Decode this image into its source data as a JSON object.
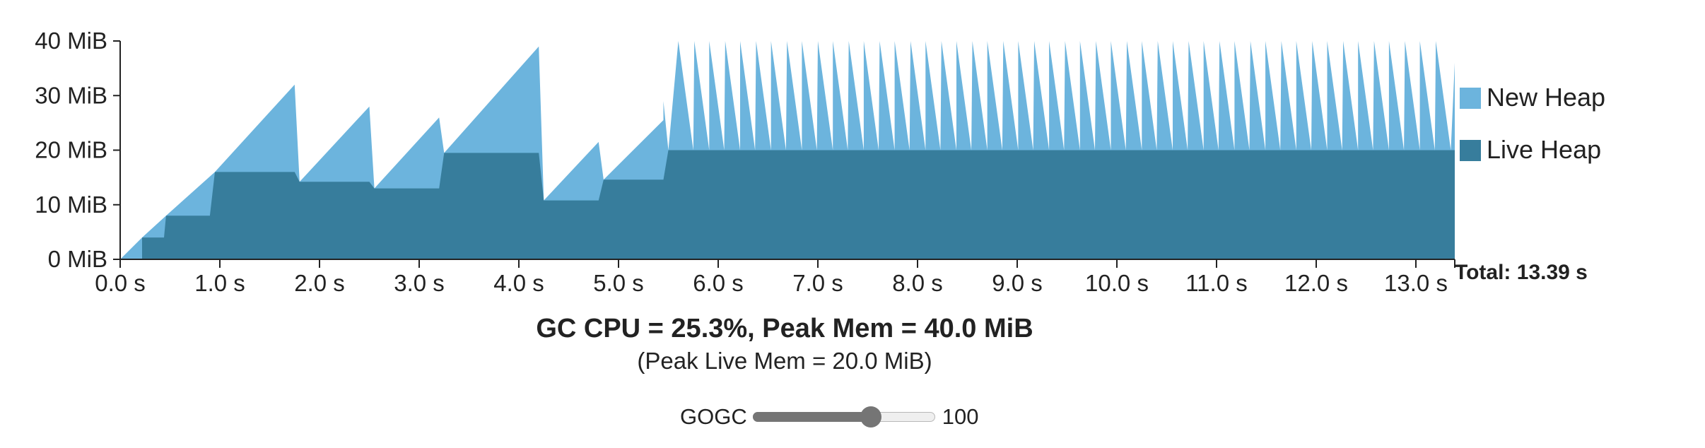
{
  "chart_data": {
    "type": "area",
    "title": "",
    "xlabel": "",
    "ylabel": "",
    "xlim": [
      0,
      13.39
    ],
    "ylim": [
      0,
      40
    ],
    "x_ticks": [
      0,
      1,
      2,
      3,
      4,
      5,
      6,
      7,
      8,
      9,
      10,
      11,
      12,
      13
    ],
    "x_tick_labels": [
      "0.0 s",
      "1.0 s",
      "2.0 s",
      "3.0 s",
      "4.0 s",
      "5.0 s",
      "6.0 s",
      "7.0 s",
      "8.0 s",
      "9.0 s",
      "10.0 s",
      "11.0 s",
      "12.0 s",
      "13.0 s"
    ],
    "y_ticks": [
      0,
      10,
      20,
      30,
      40
    ],
    "y_tick_labels": [
      "0 MiB",
      "10 MiB",
      "20 MiB",
      "30 MiB",
      "40 MiB"
    ],
    "grid": false,
    "legend": "right",
    "stacked": true,
    "series": [
      {
        "name": "New Heap",
        "color": "#6cb4dd",
        "total_heap": [
          [
            0,
            0
          ],
          [
            0.22,
            4
          ],
          [
            0.22,
            4
          ],
          [
            0.46,
            8
          ],
          [
            0.46,
            8
          ],
          [
            0.95,
            16
          ],
          [
            0.95,
            16
          ],
          [
            1.75,
            32
          ],
          [
            1.8,
            14.2
          ],
          [
            2.5,
            28
          ],
          [
            2.55,
            13
          ],
          [
            3.2,
            26
          ],
          [
            3.25,
            19.5
          ],
          [
            4.2,
            39
          ],
          [
            4.25,
            10.8
          ],
          [
            4.8,
            21.5
          ],
          [
            4.85,
            14.6
          ],
          [
            5.45,
            25.5
          ],
          [
            5.45,
            29
          ],
          [
            5.5,
            20
          ],
          [
            5.6,
            40
          ],
          [
            5.6,
            40
          ],
          [
            5.75,
            20
          ],
          [
            5.76,
            40
          ],
          [
            5.91,
            20
          ],
          [
            5.91,
            40
          ],
          [
            6.06,
            20
          ],
          [
            6.07,
            40
          ],
          [
            6.22,
            20
          ],
          [
            6.22,
            40
          ],
          [
            6.37,
            20
          ],
          [
            6.38,
            40
          ],
          [
            6.53,
            20
          ],
          [
            6.53,
            40
          ],
          [
            6.68,
            20
          ],
          [
            6.69,
            40
          ],
          [
            6.84,
            20
          ],
          [
            6.84,
            40
          ],
          [
            6.99,
            20
          ],
          [
            7.0,
            40
          ],
          [
            7.15,
            20
          ],
          [
            7.15,
            40
          ],
          [
            7.3,
            20
          ],
          [
            7.31,
            40
          ],
          [
            7.46,
            20
          ],
          [
            7.46,
            40
          ],
          [
            7.61,
            20
          ],
          [
            7.62,
            40
          ],
          [
            7.77,
            20
          ],
          [
            7.77,
            40
          ],
          [
            7.92,
            20
          ],
          [
            7.93,
            40
          ],
          [
            8.08,
            20
          ],
          [
            8.08,
            40
          ],
          [
            8.23,
            20
          ],
          [
            8.24,
            40
          ],
          [
            8.39,
            20
          ],
          [
            8.39,
            40
          ],
          [
            8.54,
            20
          ],
          [
            8.55,
            40
          ],
          [
            8.7,
            20
          ],
          [
            8.7,
            40
          ],
          [
            8.85,
            20
          ],
          [
            8.86,
            40
          ],
          [
            9.01,
            20
          ],
          [
            9.01,
            40
          ],
          [
            9.16,
            20
          ],
          [
            9.17,
            40
          ],
          [
            9.32,
            20
          ],
          [
            9.32,
            40
          ],
          [
            9.47,
            20
          ],
          [
            9.48,
            40
          ],
          [
            9.63,
            20
          ],
          [
            9.63,
            40
          ],
          [
            9.78,
            20
          ],
          [
            9.79,
            40
          ],
          [
            9.94,
            20
          ],
          [
            9.94,
            40
          ],
          [
            10.09,
            20
          ],
          [
            10.1,
            40
          ],
          [
            10.25,
            20
          ],
          [
            10.25,
            40
          ],
          [
            10.4,
            20
          ],
          [
            10.41,
            40
          ],
          [
            10.56,
            20
          ],
          [
            10.56,
            40
          ],
          [
            10.71,
            20
          ],
          [
            10.72,
            40
          ],
          [
            10.87,
            20
          ],
          [
            10.87,
            40
          ],
          [
            11.02,
            20
          ],
          [
            11.03,
            40
          ],
          [
            11.18,
            20
          ],
          [
            11.18,
            40
          ],
          [
            11.33,
            20
          ],
          [
            11.34,
            40
          ],
          [
            11.49,
            20
          ],
          [
            11.49,
            40
          ],
          [
            11.64,
            20
          ],
          [
            11.65,
            40
          ],
          [
            11.8,
            20
          ],
          [
            11.8,
            40
          ],
          [
            11.95,
            20
          ],
          [
            11.96,
            40
          ],
          [
            12.11,
            20
          ],
          [
            12.11,
            40
          ],
          [
            12.26,
            20
          ],
          [
            12.27,
            40
          ],
          [
            12.42,
            20
          ],
          [
            12.42,
            40
          ],
          [
            12.57,
            20
          ],
          [
            12.58,
            40
          ],
          [
            12.73,
            20
          ],
          [
            12.73,
            40
          ],
          [
            12.88,
            20
          ],
          [
            12.89,
            40
          ],
          [
            13.04,
            20
          ],
          [
            13.04,
            40
          ],
          [
            13.19,
            20
          ],
          [
            13.2,
            40
          ],
          [
            13.35,
            20
          ],
          [
            13.39,
            36
          ]
        ]
      },
      {
        "name": "Live Heap",
        "color": "#377d9c",
        "live_heap": [
          [
            0.22,
            0
          ],
          [
            0.22,
            4
          ],
          [
            0.44,
            4
          ],
          [
            0.46,
            8
          ],
          [
            0.9,
            8
          ],
          [
            0.95,
            16
          ],
          [
            1.75,
            16
          ],
          [
            1.8,
            14.2
          ],
          [
            2.5,
            14.2
          ],
          [
            2.55,
            13
          ],
          [
            3.2,
            13
          ],
          [
            3.25,
            19.5
          ],
          [
            4.2,
            19.5
          ],
          [
            4.25,
            10.8
          ],
          [
            4.8,
            10.8
          ],
          [
            4.85,
            14.6
          ],
          [
            5.45,
            14.6
          ],
          [
            5.5,
            20
          ],
          [
            13.39,
            20
          ]
        ]
      }
    ],
    "total_label": "Total: 13.39 s"
  },
  "summary": {
    "main": "GC CPU = 25.3%, Peak Mem = 40.0 MiB",
    "sub": "(Peak Live Mem = 20.0 MiB)"
  },
  "control": {
    "label": "GOGC",
    "value": "100",
    "slider_fraction": 0.65
  }
}
